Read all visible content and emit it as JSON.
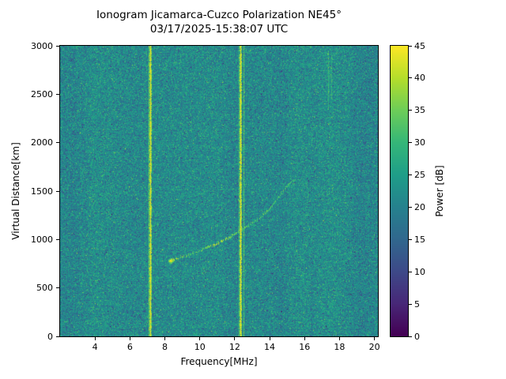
{
  "chart_data": {
    "type": "heatmap",
    "title": "Ionogram Jicamarca-Cuzco Polarization NE45°",
    "subtitle": "03/17/2025-15:38:07 UTC",
    "xlabel": "Frequency[MHz]",
    "ylabel": "Virtual Distance[km]",
    "xlim": [
      2,
      20.2
    ],
    "ylim": [
      0,
      3000
    ],
    "xticks": [
      4,
      6,
      8,
      10,
      12,
      14,
      16,
      18,
      20
    ],
    "yticks": [
      0,
      500,
      1000,
      1500,
      2000,
      2500,
      3000
    ],
    "grid": false,
    "colormap": "viridis",
    "colorbar": {
      "label": "Power [dB]",
      "min": 0,
      "max": 45,
      "ticks": [
        0,
        5,
        10,
        15,
        20,
        25,
        30,
        35,
        40,
        45
      ],
      "position": "right"
    },
    "noise": {
      "mean_db": 21.5,
      "std_db": 4.3,
      "column_band_db": 1.5
    },
    "rfi_lines": [
      {
        "freq_mhz": 7.08,
        "power_db": 35,
        "km_range": [
          0,
          3000
        ]
      },
      {
        "freq_mhz": 7.18,
        "power_db": 44,
        "km_range": [
          0,
          3000
        ]
      },
      {
        "freq_mhz": 12.22,
        "power_db": 31,
        "km_range": [
          0,
          3000
        ]
      },
      {
        "freq_mhz": 12.33,
        "power_db": 45,
        "km_range": [
          0,
          3000
        ]
      },
      {
        "freq_mhz": 12.5,
        "power_db": 32,
        "km_range": [
          0,
          3000
        ]
      },
      {
        "freq_mhz": 17.35,
        "power_db": 30,
        "km_range": [
          2350,
          2950
        ]
      },
      {
        "freq_mhz": 17.55,
        "power_db": 29,
        "km_range": [
          2450,
          2900
        ]
      }
    ],
    "echo_trace": [
      {
        "freq_mhz": 8.35,
        "virtual_km": 780,
        "power_db": 45
      },
      {
        "freq_mhz": 8.7,
        "virtual_km": 800,
        "power_db": 37
      },
      {
        "freq_mhz": 9.2,
        "virtual_km": 830,
        "power_db": 34
      },
      {
        "freq_mhz": 9.8,
        "virtual_km": 870,
        "power_db": 33
      },
      {
        "freq_mhz": 10.4,
        "virtual_km": 915,
        "power_db": 35
      },
      {
        "freq_mhz": 10.9,
        "virtual_km": 950,
        "power_db": 40
      },
      {
        "freq_mhz": 11.3,
        "virtual_km": 985,
        "power_db": 41
      },
      {
        "freq_mhz": 11.8,
        "virtual_km": 1030,
        "power_db": 36
      },
      {
        "freq_mhz": 12.3,
        "virtual_km": 1090,
        "power_db": 34
      },
      {
        "freq_mhz": 12.9,
        "virtual_km": 1150,
        "power_db": 34
      },
      {
        "freq_mhz": 13.5,
        "virtual_km": 1230,
        "power_db": 33
      },
      {
        "freq_mhz": 14.0,
        "virtual_km": 1320,
        "power_db": 33
      },
      {
        "freq_mhz": 14.5,
        "virtual_km": 1430,
        "power_db": 32
      },
      {
        "freq_mhz": 14.9,
        "virtual_km": 1530,
        "power_db": 31
      },
      {
        "freq_mhz": 15.2,
        "virtual_km": 1590,
        "power_db": 31
      },
      {
        "freq_mhz": 15.5,
        "virtual_km": 1620,
        "power_db": 30
      }
    ]
  }
}
